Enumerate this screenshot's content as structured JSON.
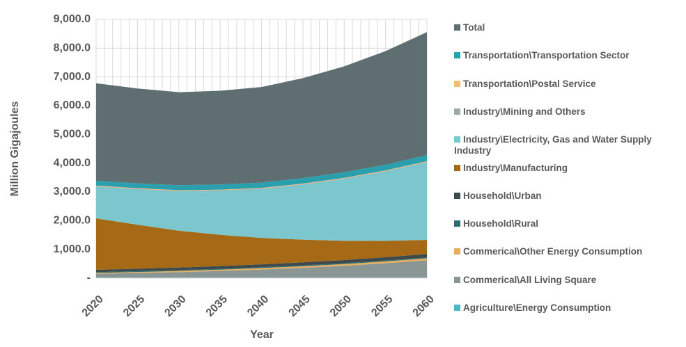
{
  "chart_data": {
    "type": "stacked_area",
    "x_label": "Year",
    "y_label": "Million Gigajoules",
    "categories": [
      "2020",
      "2025",
      "2030",
      "2035",
      "2040",
      "2045",
      "2050",
      "2055",
      "2060"
    ],
    "ylim": [
      0,
      9000
    ],
    "yticks": [
      {
        "value": 0,
        "label": "-"
      },
      {
        "value": 1000,
        "label": "1,000.0"
      },
      {
        "value": 2000,
        "label": "2,000.0"
      },
      {
        "value": 3000,
        "label": "3,000.0"
      },
      {
        "value": 4000,
        "label": "4,000.0"
      },
      {
        "value": 5000,
        "label": "5,000.0"
      },
      {
        "value": 6000,
        "label": "6,000.0"
      },
      {
        "value": 7000,
        "label": "7,000.0"
      },
      {
        "value": 8000,
        "label": "8,000.0"
      },
      {
        "value": 9000,
        "label": "9,000.0"
      }
    ],
    "grid": true,
    "series": [
      {
        "name": "Total",
        "color": "#5f6f71",
        "values": [
          3390,
          3300,
          3235,
          3260,
          3325,
          3480,
          3685,
          3950,
          4280
        ]
      },
      {
        "name": "Transportation\\Transportation Sector",
        "color": "#2a9fae",
        "values": [
          170,
          170,
          175,
          180,
          185,
          190,
          195,
          200,
          210
        ]
      },
      {
        "name": "Transportation\\Postal Service",
        "color": "#f2bd78",
        "values": [
          20,
          20,
          20,
          20,
          20,
          20,
          20,
          20,
          20
        ]
      },
      {
        "name": "Industry\\Mining and Others",
        "color": "#9ea8a6",
        "values": [
          20,
          20,
          20,
          20,
          20,
          20,
          20,
          20,
          20
        ]
      },
      {
        "name": "Industry\\Electricity, Gas and Water Supply Industry",
        "color": "#7cc7ce",
        "values": [
          1100,
          1230,
          1370,
          1530,
          1700,
          1910,
          2150,
          2410,
          2700
        ]
      },
      {
        "name": "Industry\\Manufacturing",
        "color": "#a66a17",
        "values": [
          1790,
          1530,
          1280,
          1090,
          920,
          790,
          670,
          570,
          490
        ]
      },
      {
        "name": "Household\\Urban",
        "color": "#3e494b",
        "values": [
          80,
          85,
          90,
          95,
          100,
          105,
          110,
          115,
          120
        ]
      },
      {
        "name": "Household\\Rural",
        "color": "#2b6e72",
        "values": [
          30,
          30,
          30,
          30,
          30,
          30,
          30,
          30,
          30
        ]
      },
      {
        "name": "Commerical\\Other Energy Consumption",
        "color": "#e8ae5c",
        "values": [
          30,
          35,
          40,
          45,
          50,
          55,
          60,
          65,
          70
        ]
      },
      {
        "name": "Commerical\\All Living Square",
        "color": "#8a9694",
        "values": [
          130,
          160,
          190,
          230,
          280,
          340,
          410,
          500,
          600
        ]
      },
      {
        "name": "Agriculture\\Energy Consumption",
        "color": "#4fb6c3",
        "values": [
          20,
          20,
          20,
          20,
          20,
          20,
          20,
          20,
          20
        ]
      }
    ]
  }
}
